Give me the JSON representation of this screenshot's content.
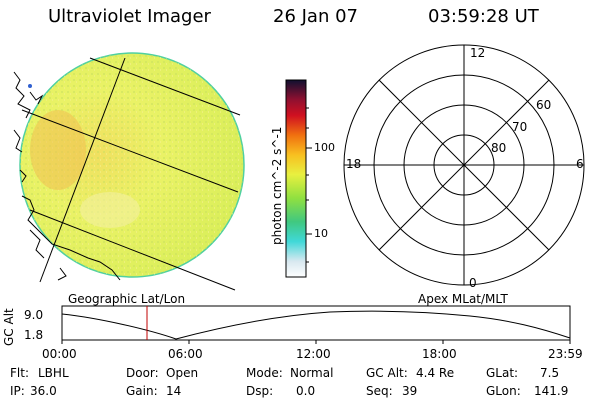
{
  "header": {
    "instrument": "Ultraviolet Imager",
    "date": "26 Jan 07",
    "time": "03:59:28 UT"
  },
  "left_panel": {
    "caption": "Geographic Lat/Lon"
  },
  "colorbar": {
    "unit": "photon cm^-2 s^-1",
    "ticks": [
      "100",
      "10"
    ]
  },
  "right_panel": {
    "caption": "Apex MLat/MLT",
    "mlt_labels": [
      "12",
      "18",
      "6",
      "0"
    ],
    "mlat_labels": [
      "60",
      "70",
      "80"
    ]
  },
  "gc_plot": {
    "ylabel": "GC Alt",
    "yticks": [
      "9.0",
      "1.8"
    ],
    "xticks": [
      "00:00",
      "06:00",
      "12:00",
      "18:00",
      "23:59"
    ],
    "marker_time": "03:59:28"
  },
  "status": {
    "flt_label": "Flt:",
    "flt_value": "LBHL",
    "door_label": "Door:",
    "door_value": "Open",
    "mode_label": "Mode:",
    "mode_value": "Normal",
    "gcalt_label": "GC Alt:",
    "gcalt_value": "4.4 Re",
    "glat_label": "GLat:",
    "glat_value": "7.5",
    "ip_label": "IP:",
    "ip_value": "36.0",
    "gain_label": "Gain:",
    "gain_value": "14",
    "dsp_label": "Dsp:",
    "dsp_value": "0.0",
    "seq_label": "Seq:",
    "seq_value": "39",
    "glon_label": "GLon:",
    "glon_value": "141.9"
  },
  "colors": {
    "disk_fill": "#e8f060",
    "disk_edge": "#50d0a0",
    "marker": "#c00000"
  }
}
